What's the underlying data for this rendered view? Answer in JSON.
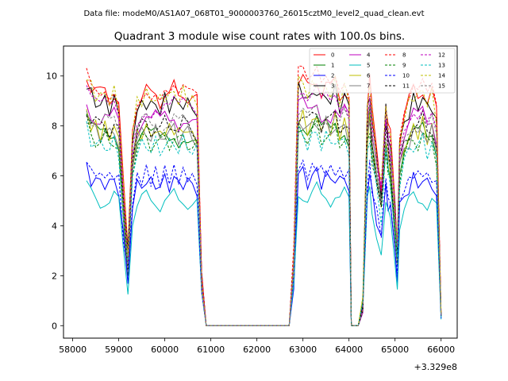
{
  "figure": {
    "suptitle": "Data file: modeM0/AS1A07_068T01_9000003760_26015cztM0_level2_quad_clean.evt"
  },
  "chart_data": {
    "type": "line",
    "title": "Quadrant 3 module wise count rates with 100.0s bins.",
    "xlabel": "",
    "ylabel": "",
    "x_offset_label": "+3.329e8",
    "xlim": [
      57800,
      66350
    ],
    "ylim": [
      -0.5,
      11.2
    ],
    "x_ticks": [
      58000,
      59000,
      60000,
      61000,
      62000,
      63000,
      64000,
      65000,
      66000
    ],
    "y_ticks": [
      0,
      2,
      4,
      6,
      8,
      10
    ],
    "grid": false,
    "legend_position": "top-right",
    "legend_columns": 4,
    "segments": [
      [
        58300,
        60800
      ],
      [
        60800,
        62800
      ],
      [
        62800,
        64100
      ],
      [
        64100,
        66000
      ]
    ],
    "series": [
      {
        "name": "0",
        "color": "#ff0000",
        "dash": "solid",
        "level": 9.4
      },
      {
        "name": "1",
        "color": "#008000",
        "dash": "solid",
        "level": 7.7
      },
      {
        "name": "2",
        "color": "#0000ff",
        "dash": "solid",
        "level": 5.8
      },
      {
        "name": "3",
        "color": "#000000",
        "dash": "solid",
        "level": 9.0
      },
      {
        "name": "4",
        "color": "#bf00bf",
        "dash": "solid",
        "level": 8.4
      },
      {
        "name": "5",
        "color": "#00bfbf",
        "dash": "solid",
        "level": 5.1
      },
      {
        "name": "6",
        "color": "#bfbf00",
        "dash": "solid",
        "level": 7.9
      },
      {
        "name": "7",
        "color": "#808080",
        "dash": "solid",
        "level": 7.8
      },
      {
        "name": "8",
        "color": "#ff0000",
        "dash": "dashed",
        "level": 9.6
      },
      {
        "name": "9",
        "color": "#008000",
        "dash": "dashed",
        "level": 7.5
      },
      {
        "name": "10",
        "color": "#0000ff",
        "dash": "dashed",
        "level": 6.1
      },
      {
        "name": "11",
        "color": "#000000",
        "dash": "dashed",
        "level": 8.1
      },
      {
        "name": "12",
        "color": "#bf00bf",
        "dash": "dashed",
        "level": 8.8
      },
      {
        "name": "13",
        "color": "#00bfbf",
        "dash": "dashed",
        "level": 7.3
      },
      {
        "name": "14",
        "color": "#bfbf00",
        "dash": "dashed",
        "level": 9.3
      },
      {
        "name": "15",
        "color": "#808080",
        "dash": "dashed",
        "level": 8.2
      }
    ],
    "profile_x": [
      58300,
      58400,
      58500,
      58600,
      58700,
      58800,
      58900,
      59000,
      59100,
      59200,
      59300,
      59400,
      59500,
      59600,
      59700,
      59800,
      59900,
      60000,
      60100,
      60200,
      60300,
      60400,
      60500,
      60600,
      60700,
      60800,
      60900,
      61000,
      61500,
      62000,
      62500,
      62700,
      62800,
      62900,
      63000,
      63100,
      63200,
      63300,
      63400,
      63500,
      63600,
      63700,
      63800,
      63900,
      64000,
      64050,
      64100,
      64200,
      64300,
      64400,
      64450,
      64500,
      64600,
      64700,
      64800,
      64850,
      64900,
      65000,
      65050,
      65100,
      65200,
      65300,
      65400,
      65500,
      65600,
      65700,
      65800,
      65900,
      66000
    ],
    "profile_f": [
      1.08,
      1.02,
      1.0,
      0.98,
      1.0,
      0.97,
      1.0,
      0.95,
      0.6,
      0.3,
      0.85,
      0.95,
      0.98,
      1.0,
      0.97,
      0.99,
      0.96,
      1.0,
      0.98,
      1.01,
      0.97,
      1.0,
      0.98,
      0.97,
      0.95,
      0.2,
      0.0,
      0.0,
      0.0,
      0.0,
      0.0,
      0.0,
      0.3,
      1.05,
      1.05,
      1.0,
      1.02,
      1.06,
      1.0,
      1.03,
      1.0,
      1.04,
      0.98,
      1.02,
      0.97,
      0.0,
      0.0,
      0.0,
      0.1,
      0.95,
      1.05,
      0.9,
      0.75,
      0.6,
      0.95,
      0.85,
      0.8,
      0.5,
      0.35,
      0.8,
      0.9,
      0.95,
      1.0,
      0.98,
      1.02,
      0.96,
      0.99,
      0.9,
      0.05
    ]
  }
}
